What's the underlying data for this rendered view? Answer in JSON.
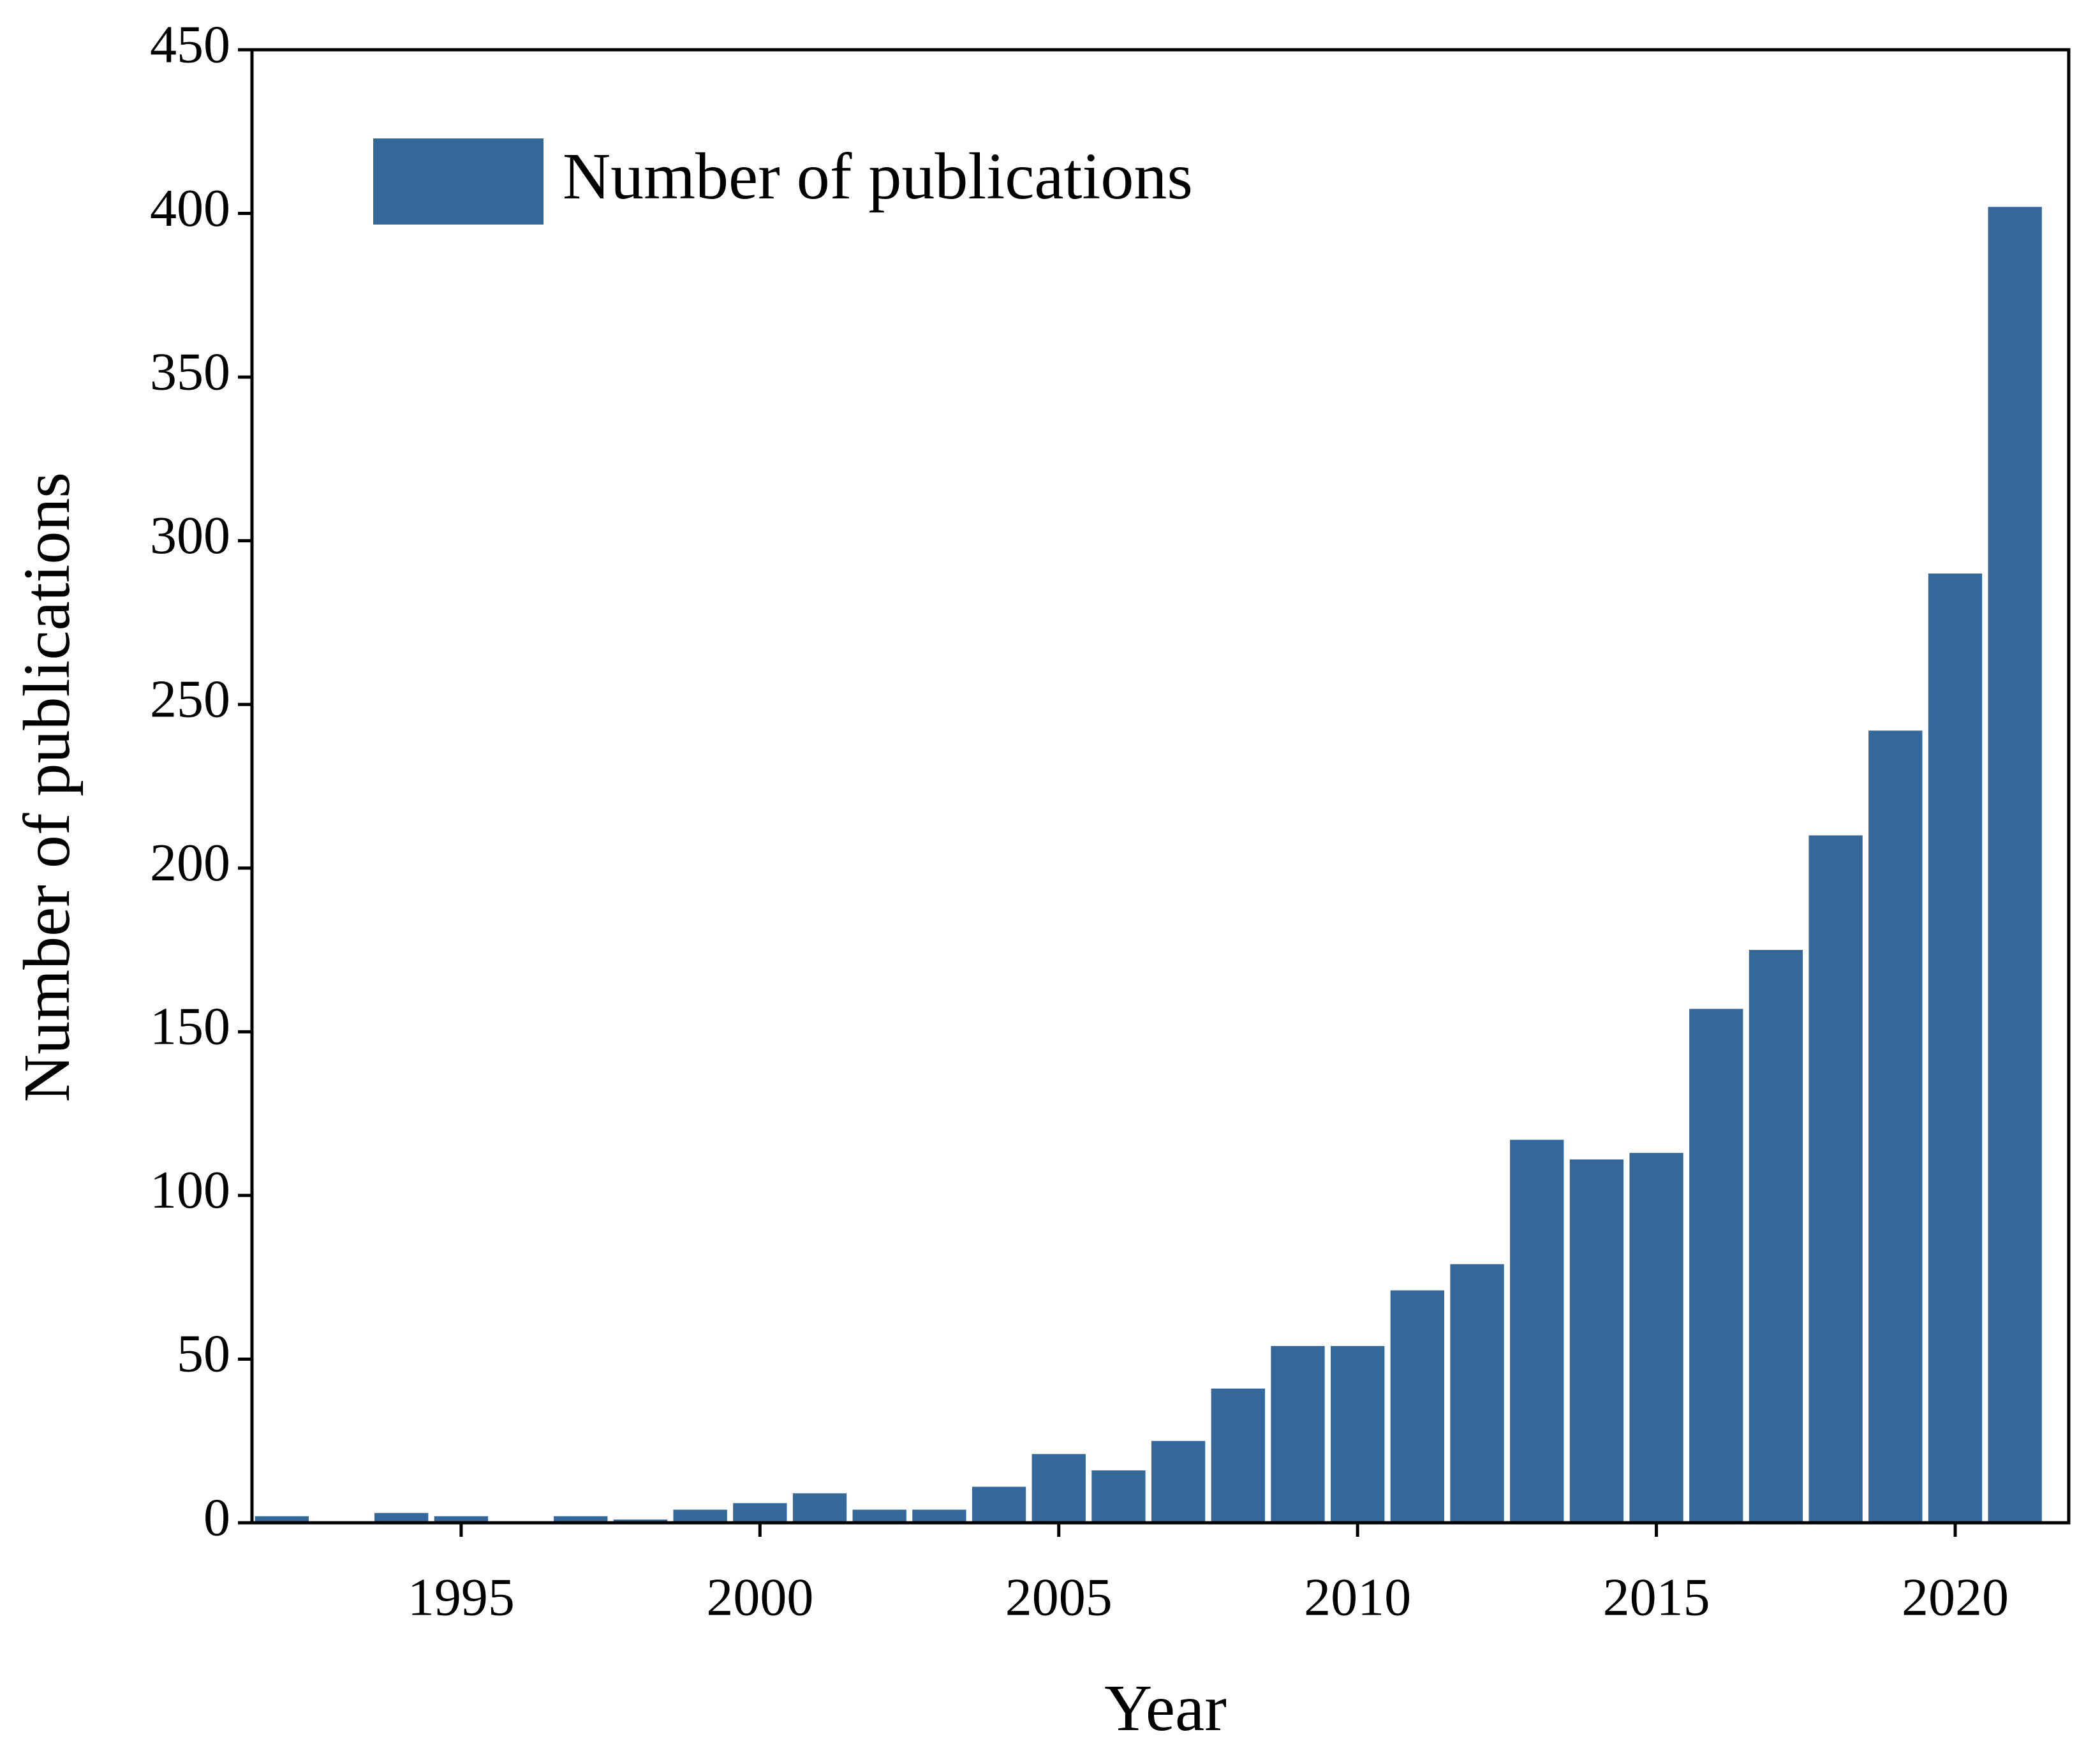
{
  "chart_data": {
    "type": "bar",
    "x_label": "Year",
    "y_label": "Number of publications",
    "x": [
      1992,
      1993,
      1994,
      1995,
      1996,
      1997,
      1998,
      1999,
      2000,
      2001,
      2002,
      2003,
      2004,
      2005,
      2006,
      2007,
      2008,
      2009,
      2010,
      2011,
      2012,
      2013,
      2014,
      2015,
      2016,
      2017,
      2018,
      2019,
      2020,
      2021
    ],
    "series": [
      {
        "name": "Number of publications",
        "color": "#34679a",
        "values": [
          2,
          0,
          3,
          2,
          0,
          2,
          1,
          4,
          6,
          9,
          4,
          4,
          11,
          21,
          16,
          25,
          41,
          54,
          54,
          71,
          79,
          117,
          111,
          113,
          157,
          175,
          210,
          242,
          290,
          402
        ]
      }
    ],
    "xlim": [
      1991.5,
      2021.9
    ],
    "xticks": [
      1995,
      2000,
      2005,
      2010,
      2015,
      2020
    ],
    "ylim": [
      0,
      450
    ],
    "yticks": [
      0,
      50,
      100,
      150,
      200,
      250,
      300,
      350,
      400,
      450
    ],
    "grid": false,
    "legend": "upper left"
  }
}
